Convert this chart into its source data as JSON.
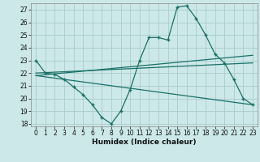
{
  "title": "",
  "xlabel": "Humidex (Indice chaleur)",
  "ylabel": "",
  "bg_color": "#cce8e8",
  "grid_color": "#aacccc",
  "line_color": "#1a7068",
  "xlim": [
    -0.5,
    23.5
  ],
  "ylim": [
    17.8,
    27.5
  ],
  "yticks": [
    18,
    19,
    20,
    21,
    22,
    23,
    24,
    25,
    26,
    27
  ],
  "xticks": [
    0,
    1,
    2,
    3,
    4,
    5,
    6,
    7,
    8,
    9,
    10,
    11,
    12,
    13,
    14,
    15,
    16,
    17,
    18,
    19,
    20,
    21,
    22,
    23
  ],
  "series_main": {
    "x": [
      0,
      1,
      2,
      3,
      4,
      5,
      6,
      7,
      8,
      9,
      10,
      11,
      12,
      13,
      14,
      15,
      16,
      17,
      18,
      19,
      20,
      21,
      22,
      23
    ],
    "y": [
      23.0,
      22.0,
      21.9,
      21.5,
      20.9,
      20.3,
      19.5,
      18.5,
      18.0,
      19.0,
      20.7,
      23.0,
      24.8,
      24.8,
      24.6,
      27.2,
      27.3,
      26.3,
      25.0,
      23.5,
      22.8,
      21.5,
      20.0,
      19.5
    ]
  },
  "line1": {
    "x": [
      0,
      23
    ],
    "y": [
      22.0,
      22.8
    ]
  },
  "line2": {
    "x": [
      0,
      23
    ],
    "y": [
      21.8,
      23.4
    ]
  },
  "line3": {
    "x": [
      0,
      23
    ],
    "y": [
      21.8,
      19.5
    ]
  }
}
